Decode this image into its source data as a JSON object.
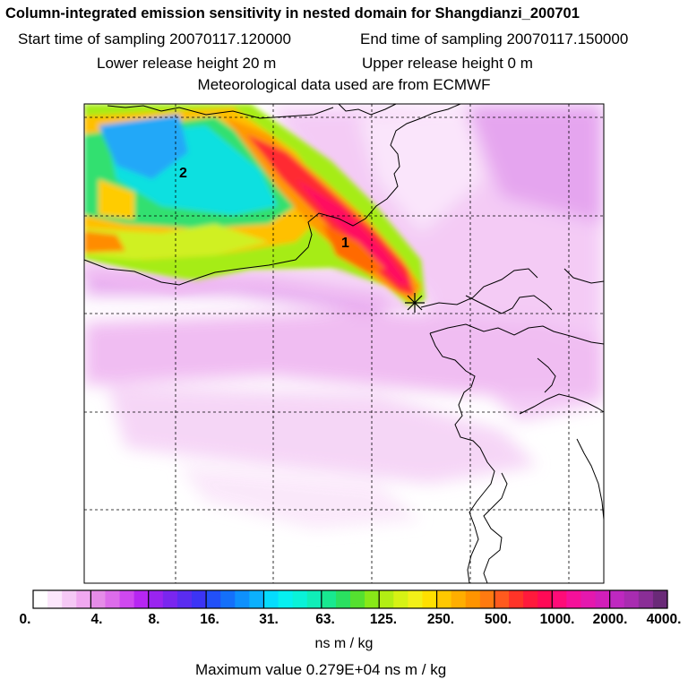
{
  "header": {
    "title": "Column-integrated emission sensitivity in nested domain for Shangdianzi_200701",
    "start_time": "Start time of sampling 20070117.120000",
    "end_time": "End time of sampling 20070117.150000",
    "lower_release": "Lower release height   20 m",
    "upper_release": "Upper release height    0 m",
    "met_data": "Meteorological data used are from ECMWF"
  },
  "map": {
    "labels": [
      {
        "text": "2"
      },
      {
        "text": "1"
      }
    ],
    "receptor_marker": "star-icon"
  },
  "colorbar": {
    "ticks": [
      "0.",
      "4.",
      "8.",
      "16.",
      "31.",
      "63.",
      "125.",
      "250.",
      "500.",
      "1000.",
      "2000.",
      "4000."
    ],
    "colors": [
      "#ffffff",
      "#fbe6fb",
      "#f5c8f5",
      "#f0a8f0",
      "#e58ce8",
      "#dc6cea",
      "#cf48ef",
      "#b726f2",
      "#9a24f0",
      "#7a26ef",
      "#5a2cf0",
      "#3c34f5",
      "#2250f8",
      "#1470fa",
      "#0e90fc",
      "#0cb0fd",
      "#05dcfd",
      "#06f0f0",
      "#0af2d8",
      "#10eeb8",
      "#18e890",
      "#2ae060",
      "#55e030",
      "#88e818",
      "#b2ee14",
      "#d6f214",
      "#f2f018",
      "#ffe000",
      "#ffc800",
      "#ffae00",
      "#ff9400",
      "#ff7a10",
      "#ff5a1e",
      "#ff3428",
      "#ff1a3c",
      "#ff0a56",
      "#ff0c78",
      "#f5109a",
      "#e418ae",
      "#d21eba",
      "#bf28c0",
      "#a82cb0",
      "#8a2e96",
      "#6a2a78"
    ],
    "units": "ns m / kg",
    "max_value": "Maximum value  0.279E+04 ns m / kg"
  }
}
